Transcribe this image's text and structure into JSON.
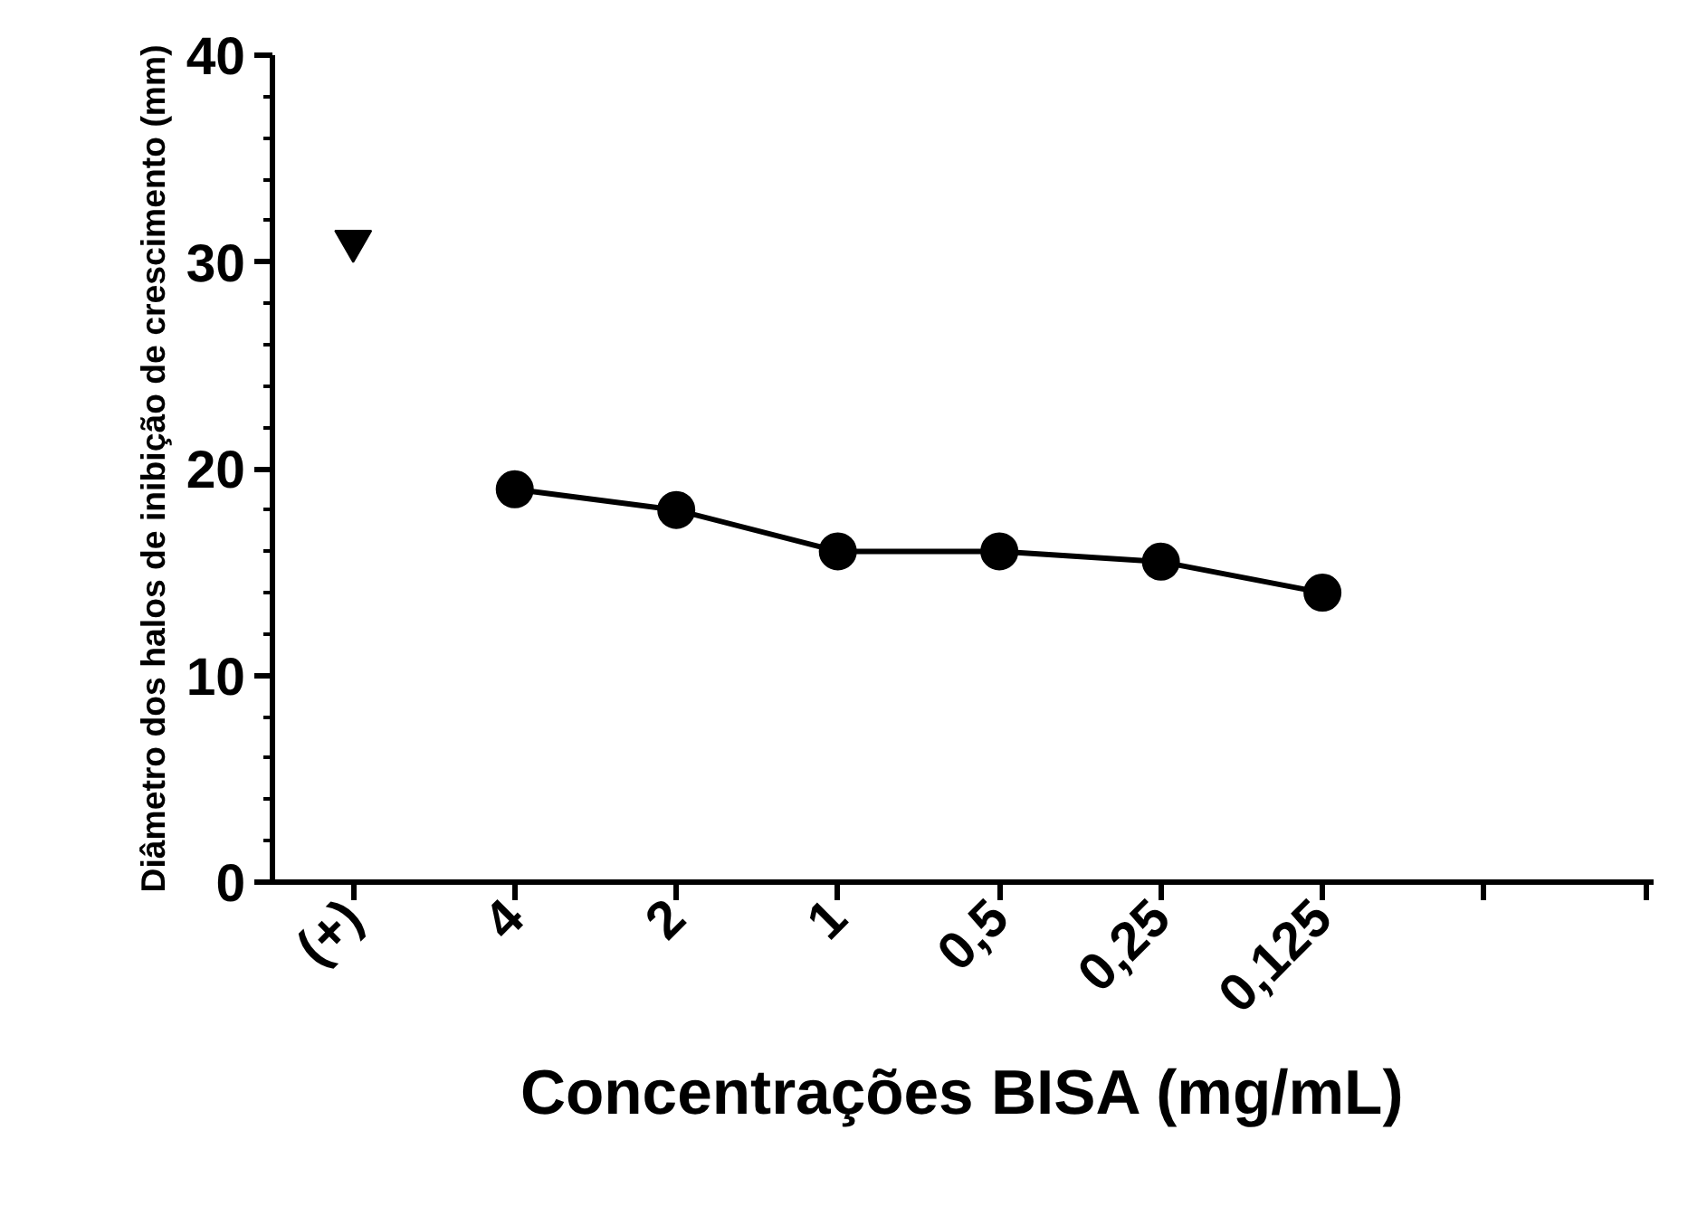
{
  "chart_data": {
    "type": "line",
    "xlabel": "Concentrações BISA (mg/mL)",
    "ylabel": "Diâmetro dos halos de inibição de crescimento (mm)",
    "categories": [
      "(+)",
      "4",
      "2",
      "1",
      "0,5",
      "0,25",
      "0,125",
      null,
      null
    ],
    "ylim": [
      0,
      40
    ],
    "yticks": [
      0,
      10,
      20,
      30,
      40
    ],
    "grid": false,
    "series": [
      {
        "type": "scatter",
        "marker": "triangle",
        "color": "#000000",
        "values": [
          31,
          null,
          null,
          null,
          null,
          null,
          null,
          null,
          null
        ]
      },
      {
        "marker": "circle",
        "color": "#000000",
        "values": [
          null,
          19,
          18,
          16,
          16,
          15.5,
          14,
          null,
          null
        ]
      }
    ]
  }
}
